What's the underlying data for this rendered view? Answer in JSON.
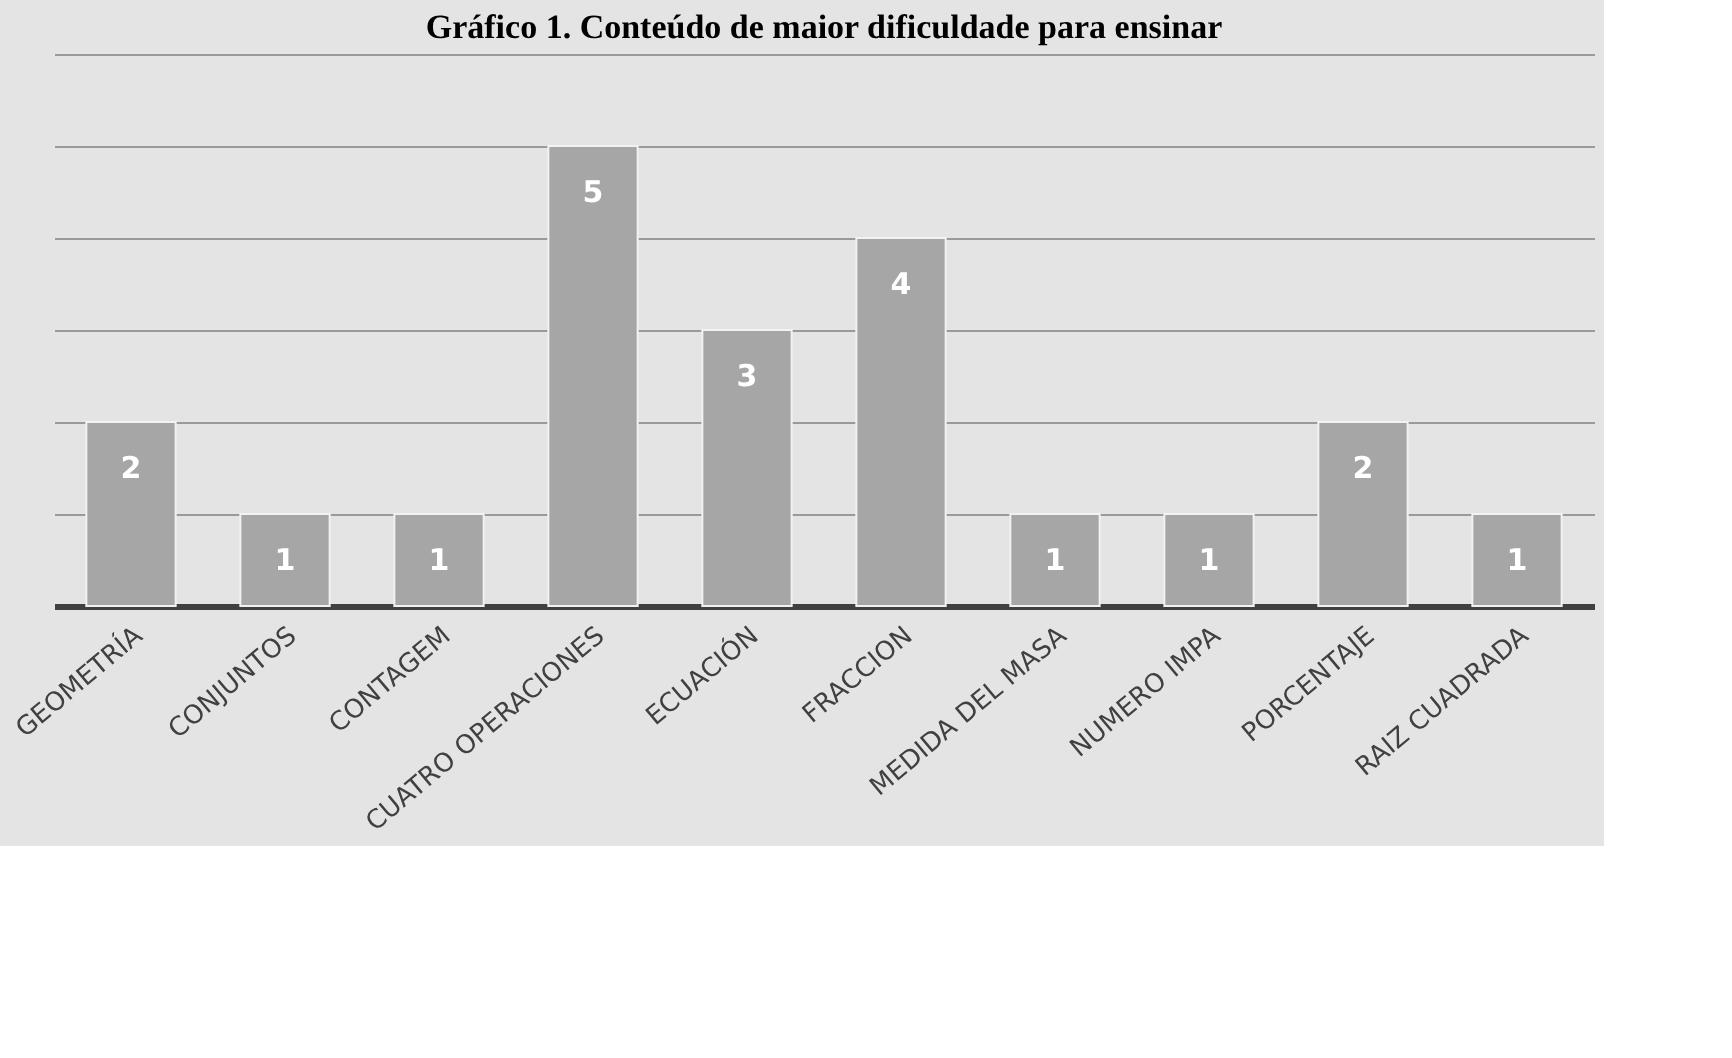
{
  "chart_data": {
    "type": "bar",
    "title": "Gráfico 1. Conteúdo de maior dificuldade para ensinar",
    "categories": [
      "GEOMETRÍA",
      "CONJUNTOS",
      "CONTAGEM",
      "CUATRO OPERACIONES",
      "ECUACIÓN",
      "FRACCION",
      "MEDIDA DEL MASA",
      "NUMERO IMPA",
      "PORCENTAJE",
      "RAIZ CUADRADA"
    ],
    "values": [
      2,
      1,
      1,
      5,
      3,
      4,
      1,
      1,
      2,
      1
    ],
    "color": "#a6a6a6",
    "ylim": [
      0,
      6
    ],
    "yticks": [
      {
        "value": 0,
        "label": null
      },
      {
        "value": 1,
        "label": null
      },
      {
        "value": 2,
        "label": null
      },
      {
        "value": 3,
        "label": null
      },
      {
        "value": 4,
        "label": null
      },
      {
        "value": 5,
        "label": null
      },
      {
        "value": 6,
        "label": null
      }
    ],
    "tick_labels": "x",
    "grid": "y",
    "data_labels": true
  }
}
